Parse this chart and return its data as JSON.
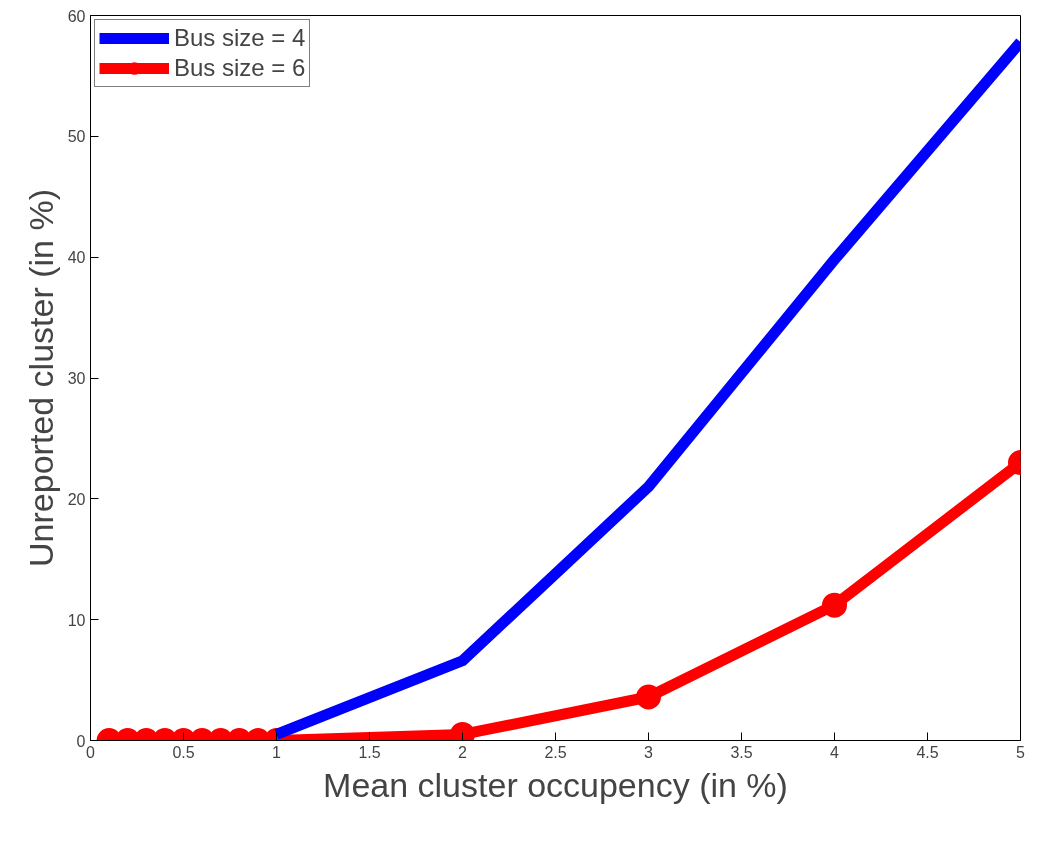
{
  "chart_data": {
    "type": "line",
    "xlabel": "Mean cluster occupency (in %)",
    "ylabel": "Unreported cluster (in %)",
    "xlim": [
      0,
      5
    ],
    "ylim": [
      0,
      60
    ],
    "xticks": [
      0,
      0.5,
      1,
      1.5,
      2,
      2.5,
      3,
      3.5,
      4,
      4.5,
      5
    ],
    "yticks": [
      0,
      10,
      20,
      30,
      40,
      50,
      60
    ],
    "x": [
      0.1,
      0.2,
      0.3,
      0.4,
      0.5,
      0.6,
      0.7,
      0.8,
      0.9,
      1,
      2,
      3,
      4,
      5
    ],
    "grid": false,
    "legend": "top left",
    "line_style": "solid",
    "series": [
      {
        "name": "Bus size = 4",
        "color": "#0000ff",
        "values": [
          null,
          null,
          null,
          null,
          null,
          null,
          null,
          null,
          null,
          0.5,
          6.6,
          21,
          39.8,
          57.8
        ]
      },
      {
        "name": "Bus size = 6",
        "color": "#ff0000",
        "marker": "circle",
        "values": [
          0,
          0,
          0,
          0,
          0,
          0,
          0,
          0,
          0,
          0,
          0.5,
          3.6,
          11.2,
          23
        ]
      }
    ]
  }
}
